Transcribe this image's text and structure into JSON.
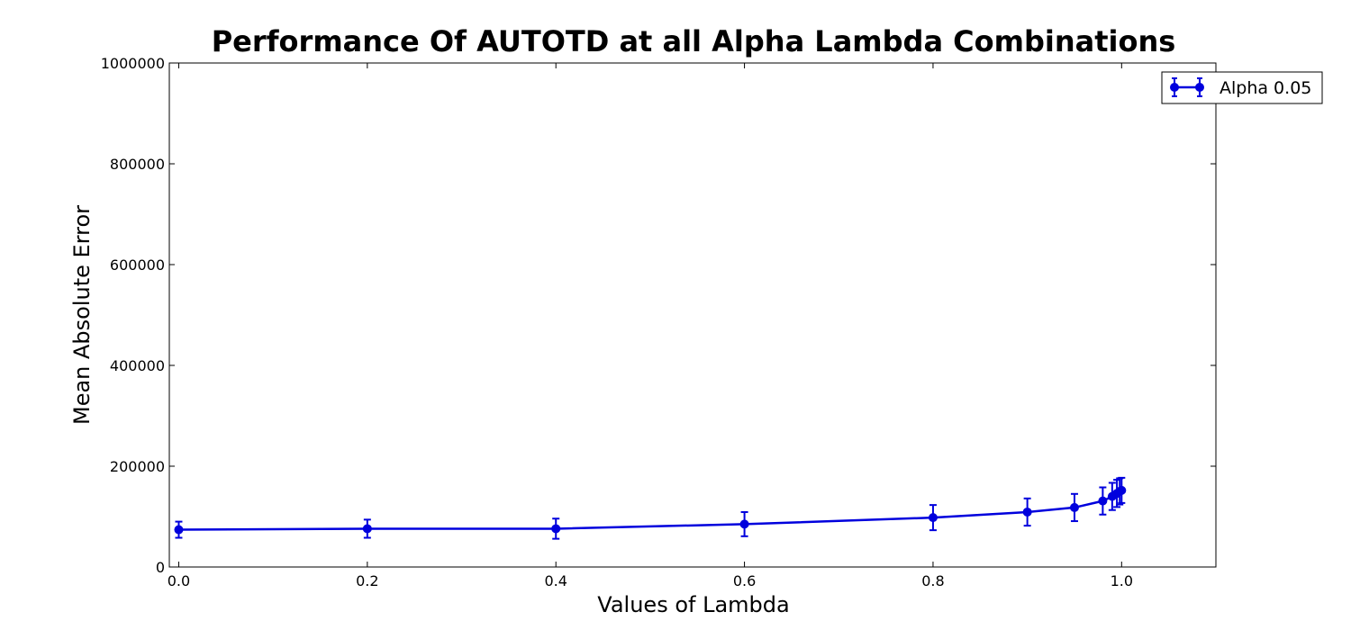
{
  "chart_data": {
    "type": "line",
    "title": "Performance Of AUTOTD at all Alpha Lambda Combinations",
    "xlabel": "Values of Lambda",
    "ylabel": "Mean Absolute Error",
    "xlim": [
      -0.01,
      1.1
    ],
    "ylim": [
      0,
      1000000
    ],
    "x_ticks": [
      0.0,
      0.2,
      0.4,
      0.6,
      0.8,
      1.0
    ],
    "x_tick_labels": [
      "0.0",
      "0.2",
      "0.4",
      "0.6",
      "0.8",
      "1.0"
    ],
    "y_ticks": [
      0,
      200000,
      400000,
      600000,
      800000,
      1000000
    ],
    "y_tick_labels": [
      "0",
      "200000",
      "400000",
      "600000",
      "800000",
      "1000000"
    ],
    "grid": false,
    "legend_position": "top-right",
    "series": [
      {
        "name": "Alpha 0.05",
        "color": "#0000dd",
        "marker": "circle",
        "x": [
          0.0,
          0.2,
          0.4,
          0.6,
          0.8,
          0.9,
          0.95,
          0.98,
          0.99,
          0.995,
          0.998,
          1.0
        ],
        "y": [
          74000,
          76000,
          76000,
          85000,
          98000,
          109000,
          118000,
          131000,
          140000,
          146000,
          150000,
          152000
        ],
        "err": [
          16000,
          18000,
          20000,
          24000,
          25000,
          27000,
          27000,
          27000,
          27000,
          27000,
          26000,
          25000
        ]
      }
    ]
  }
}
